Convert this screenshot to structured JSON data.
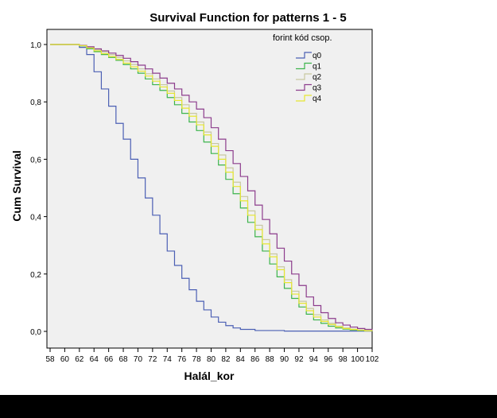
{
  "chart_data": {
    "type": "line",
    "step": true,
    "title": "Survival Function for patterns 1 - 5",
    "xlabel": "Halál_kor",
    "ylabel": "Cum Survival",
    "xlim": [
      58,
      102
    ],
    "ylim": [
      0,
      1
    ],
    "x_ticks": [
      58,
      60,
      62,
      64,
      66,
      68,
      70,
      72,
      74,
      76,
      78,
      80,
      82,
      84,
      86,
      88,
      90,
      92,
      94,
      96,
      98,
      100,
      102
    ],
    "x_tick_labels": [
      "58",
      "60",
      "62",
      "64",
      "66",
      "68",
      "70",
      "72",
      "74",
      "76",
      "78",
      "80",
      "82",
      "84",
      "86",
      "88",
      "90",
      "92",
      "94",
      "96",
      "98",
      "100",
      "102"
    ],
    "y_ticks": [
      0,
      0.2,
      0.4,
      0.6,
      0.8,
      1.0
    ],
    "y_tick_labels": [
      "0,0",
      "0,2",
      "0,4",
      "0,6",
      "0,8",
      "1,0"
    ],
    "legend": {
      "title": "forint kód csop.",
      "position": "top-right"
    },
    "background": "#f0f0f0",
    "series": [
      {
        "name": "q0",
        "color": "#4b5fb4",
        "x": [
          58,
          62,
          63,
          64,
          65,
          66,
          67,
          68,
          69,
          70,
          71,
          72,
          73,
          74,
          75,
          76,
          77,
          78,
          79,
          80,
          81,
          82,
          83,
          84,
          86,
          90,
          102
        ],
        "y": [
          1.0,
          0.99,
          0.965,
          0.905,
          0.845,
          0.785,
          0.725,
          0.67,
          0.6,
          0.535,
          0.465,
          0.405,
          0.34,
          0.28,
          0.23,
          0.185,
          0.145,
          0.105,
          0.075,
          0.05,
          0.032,
          0.02,
          0.012,
          0.007,
          0.003,
          0.001,
          0.0
        ]
      },
      {
        "name": "q1",
        "color": "#3cb44b",
        "x": [
          58,
          62,
          63,
          64,
          65,
          66,
          67,
          68,
          69,
          70,
          71,
          72,
          73,
          74,
          75,
          76,
          77,
          78,
          79,
          80,
          81,
          82,
          83,
          84,
          85,
          86,
          87,
          88,
          89,
          90,
          91,
          92,
          93,
          94,
          95,
          96,
          97,
          98,
          99,
          100,
          101,
          102
        ],
        "y": [
          1.0,
          0.995,
          0.985,
          0.975,
          0.965,
          0.955,
          0.945,
          0.93,
          0.915,
          0.9,
          0.88,
          0.86,
          0.84,
          0.815,
          0.79,
          0.76,
          0.73,
          0.7,
          0.66,
          0.62,
          0.58,
          0.53,
          0.48,
          0.43,
          0.38,
          0.33,
          0.28,
          0.235,
          0.19,
          0.15,
          0.115,
          0.085,
          0.06,
          0.04,
          0.028,
          0.018,
          0.012,
          0.008,
          0.005,
          0.003,
          0.002,
          0.001
        ]
      },
      {
        "name": "q2",
        "color": "#c8c8a0",
        "x": [
          58,
          62,
          63,
          64,
          65,
          66,
          67,
          68,
          69,
          70,
          71,
          72,
          73,
          74,
          75,
          76,
          77,
          78,
          79,
          80,
          81,
          82,
          83,
          84,
          85,
          86,
          87,
          88,
          89,
          90,
          91,
          92,
          93,
          94,
          95,
          96,
          97,
          98,
          99,
          100,
          101,
          102
        ],
        "y": [
          1.0,
          0.996,
          0.99,
          0.982,
          0.974,
          0.965,
          0.955,
          0.943,
          0.93,
          0.915,
          0.898,
          0.88,
          0.86,
          0.838,
          0.815,
          0.79,
          0.76,
          0.73,
          0.695,
          0.655,
          0.615,
          0.57,
          0.52,
          0.47,
          0.42,
          0.37,
          0.32,
          0.27,
          0.225,
          0.18,
          0.14,
          0.105,
          0.08,
          0.058,
          0.04,
          0.028,
          0.018,
          0.012,
          0.008,
          0.005,
          0.003,
          0.002
        ]
      },
      {
        "name": "q3",
        "color": "#8c3c8c",
        "x": [
          58,
          62,
          63,
          64,
          65,
          66,
          67,
          68,
          69,
          70,
          71,
          72,
          73,
          74,
          75,
          76,
          77,
          78,
          79,
          80,
          81,
          82,
          83,
          84,
          85,
          86,
          87,
          88,
          89,
          90,
          91,
          92,
          93,
          94,
          95,
          96,
          97,
          98,
          99,
          100,
          101,
          102
        ],
        "y": [
          1.0,
          0.997,
          0.992,
          0.985,
          0.978,
          0.97,
          0.962,
          0.952,
          0.94,
          0.928,
          0.915,
          0.9,
          0.883,
          0.865,
          0.845,
          0.823,
          0.8,
          0.775,
          0.745,
          0.71,
          0.67,
          0.63,
          0.585,
          0.54,
          0.49,
          0.44,
          0.39,
          0.34,
          0.29,
          0.245,
          0.2,
          0.16,
          0.12,
          0.09,
          0.065,
          0.045,
          0.03,
          0.022,
          0.015,
          0.01,
          0.007,
          0.005
        ]
      },
      {
        "name": "q4",
        "color": "#e6e632",
        "x": [
          58,
          62,
          63,
          64,
          65,
          66,
          67,
          68,
          69,
          70,
          71,
          72,
          73,
          74,
          75,
          76,
          77,
          78,
          79,
          80,
          81,
          82,
          83,
          84,
          85,
          86,
          87,
          88,
          89,
          90,
          91,
          92,
          93,
          94,
          95,
          96,
          97,
          98,
          99,
          100,
          101,
          102
        ],
        "y": [
          1.0,
          0.996,
          0.988,
          0.978,
          0.968,
          0.958,
          0.948,
          0.935,
          0.922,
          0.907,
          0.89,
          0.872,
          0.852,
          0.83,
          0.805,
          0.778,
          0.75,
          0.72,
          0.685,
          0.645,
          0.6,
          0.555,
          0.505,
          0.455,
          0.405,
          0.355,
          0.305,
          0.26,
          0.215,
          0.17,
          0.13,
          0.098,
          0.072,
          0.05,
          0.035,
          0.024,
          0.016,
          0.01,
          0.007,
          0.004,
          0.002,
          0.001
        ]
      }
    ]
  }
}
